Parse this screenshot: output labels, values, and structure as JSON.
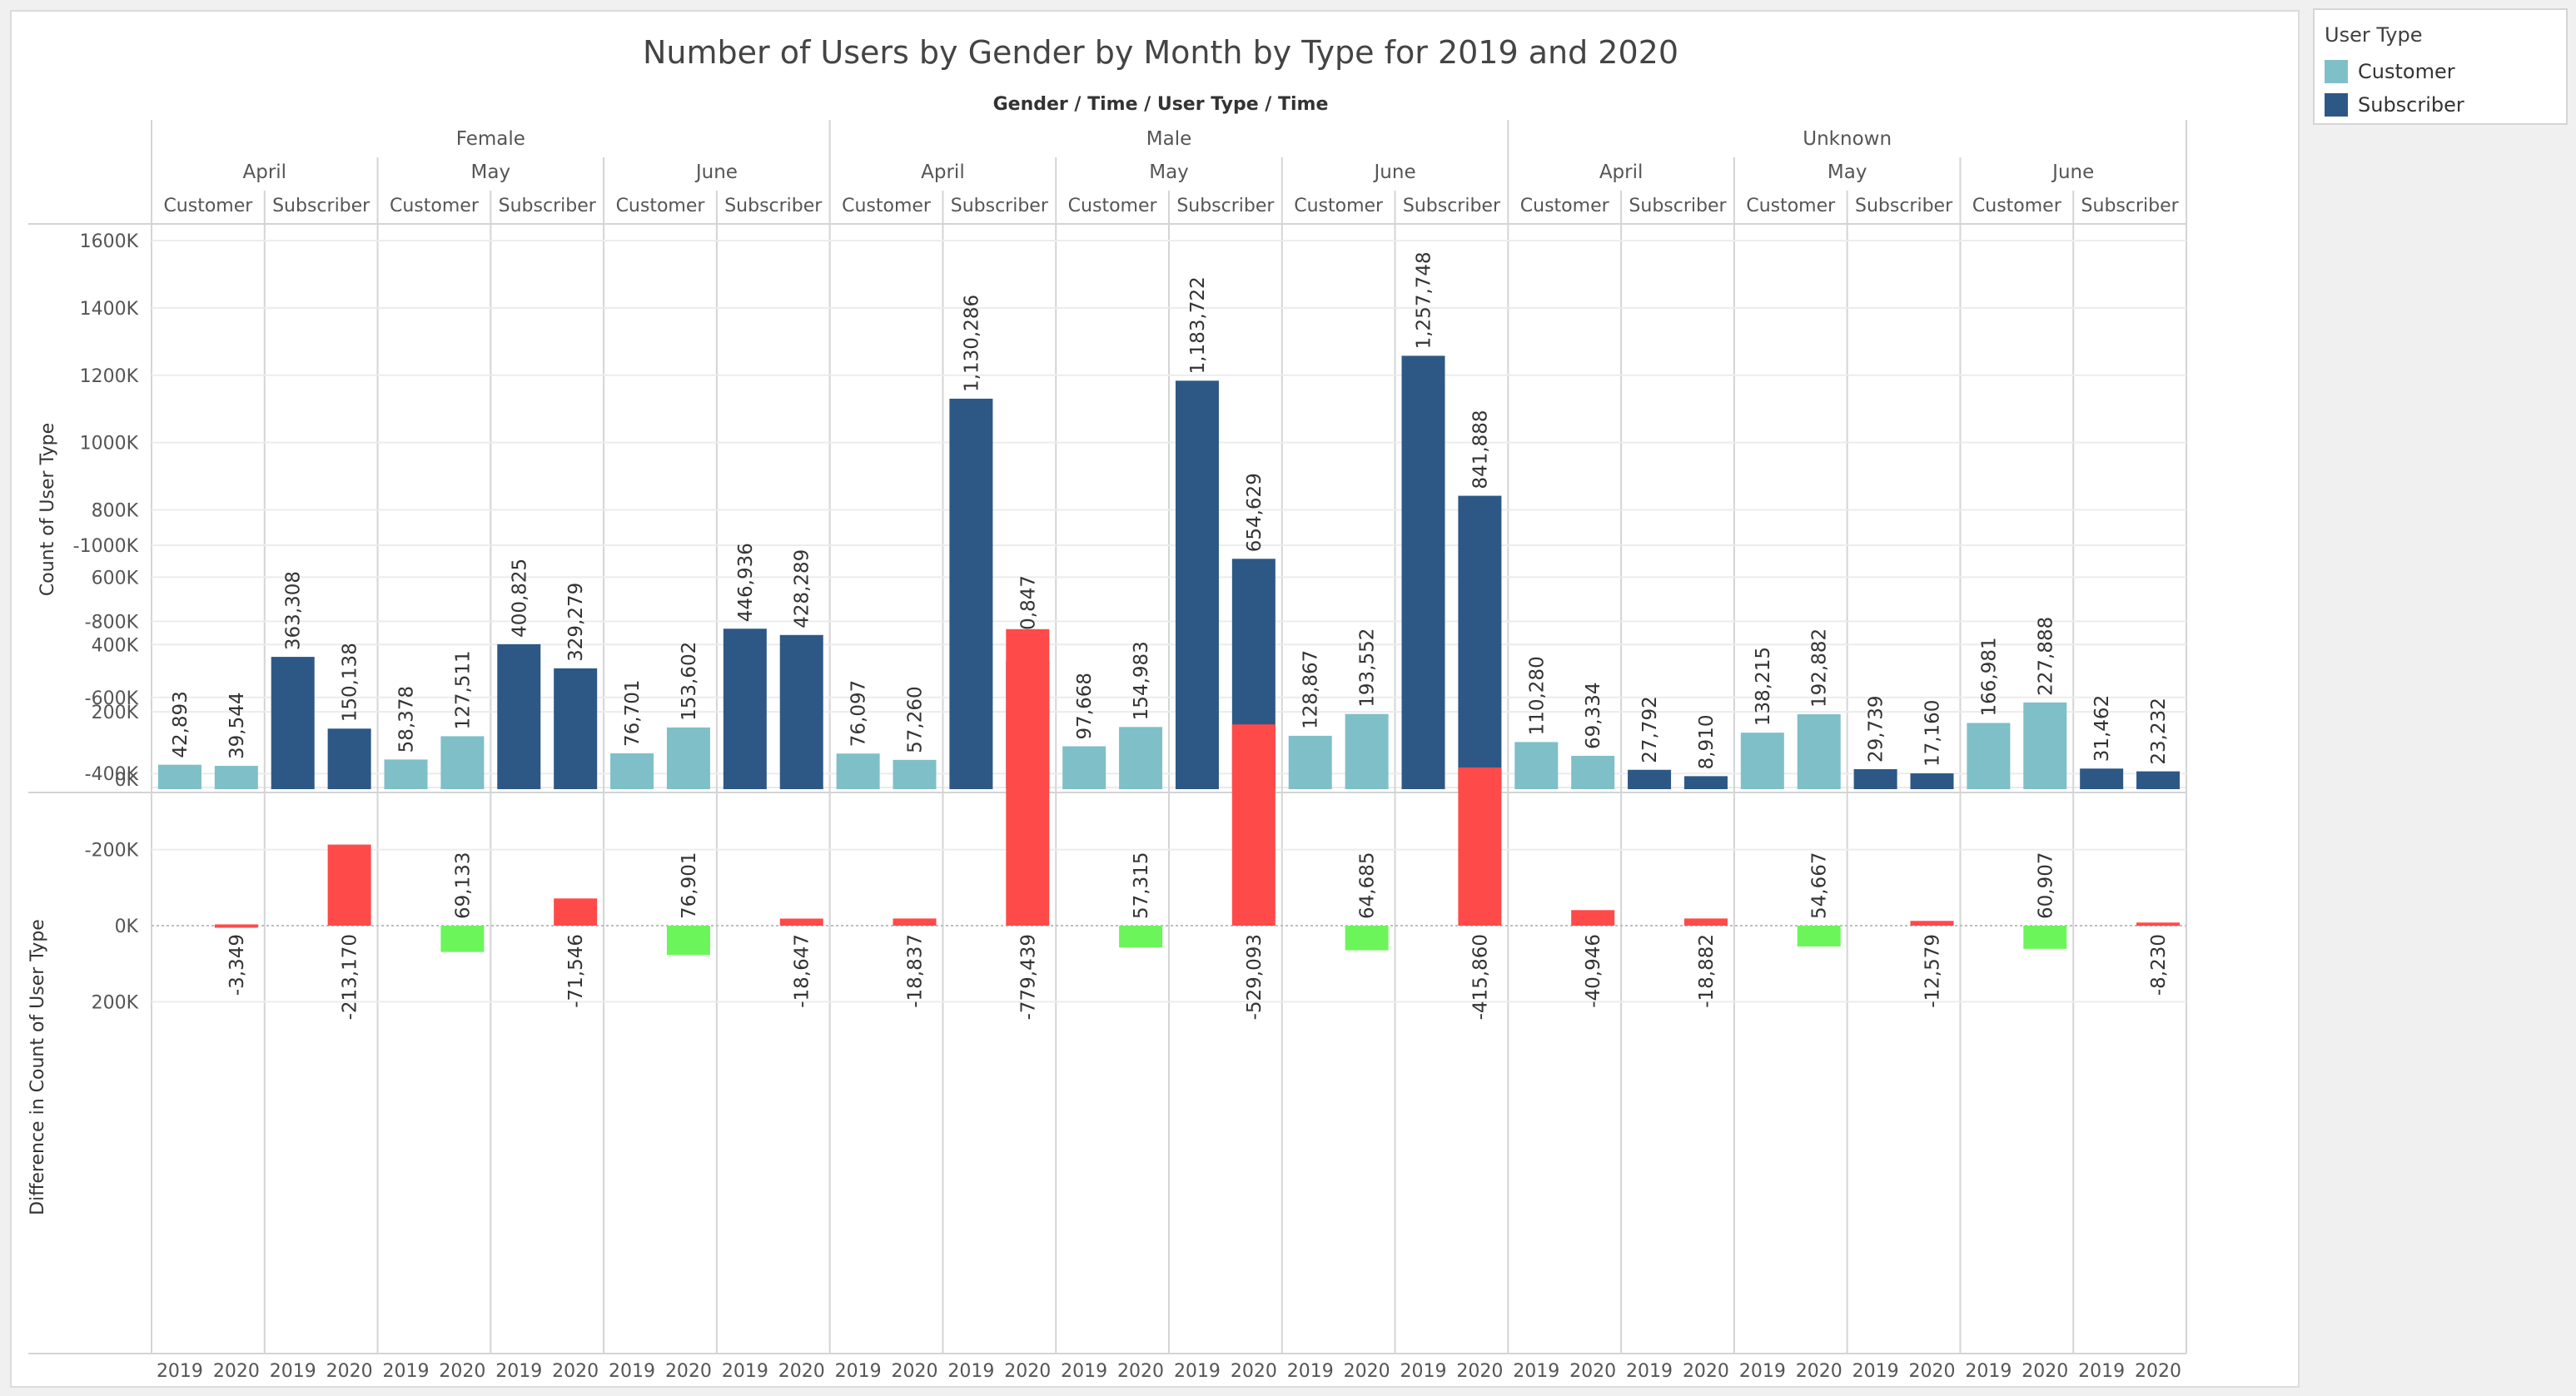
{
  "title": "Number of Users by Gender by Month by Type for 2019 and 2020",
  "header_caption": "Gender / Time / User Type / Time",
  "legend": {
    "title": "User Type",
    "items": [
      {
        "label": "Customer",
        "color": "#7fbfc8"
      },
      {
        "label": "Subscriber",
        "color": "#2d5886"
      }
    ]
  },
  "colors": {
    "customer": "#7fbfc8",
    "subscriber": "#2d5886",
    "increase": "#6cf55a",
    "decrease": "#ff4a4a"
  },
  "chart_data": {
    "type": "bar",
    "genders": [
      "Female",
      "Male",
      "Unknown"
    ],
    "months": [
      "April",
      "May",
      "June"
    ],
    "user_types": [
      "Customer",
      "Subscriber"
    ],
    "years": [
      "2019",
      "2020"
    ],
    "panels": [
      {
        "ylabel": "Count of User Type",
        "ylim": [
          0,
          1600000
        ],
        "ticks": [
          0,
          200000,
          400000,
          600000,
          800000,
          1000000,
          1200000,
          1400000,
          1600000
        ],
        "tick_labels": [
          "0K",
          "200K",
          "400K",
          "600K",
          "800K",
          "1000K",
          "1200K",
          "1400K",
          "1600K"
        ],
        "values": [
          42893,
          39544,
          363308,
          150138,
          58378,
          127511,
          400825,
          329279,
          76701,
          153602,
          446936,
          428289,
          76097,
          57260,
          1130286,
          350847,
          97668,
          154983,
          1183722,
          654629,
          128867,
          193552,
          1257748,
          841888,
          110280,
          69334,
          27792,
          8910,
          138215,
          192882,
          29739,
          17160,
          166981,
          227888,
          31462,
          23232
        ],
        "labels": [
          "42,893",
          "39,544",
          "363,308",
          "150,138",
          "58,378",
          "127,511",
          "400,825",
          "329,279",
          "76,701",
          "153,602",
          "446,936",
          "428,289",
          "76,097",
          "57,260",
          "1,130,286",
          "350,847",
          "97,668",
          "154,983",
          "1,183,722",
          "654,629",
          "128,867",
          "193,552",
          "1,257,748",
          "841,888",
          "110,280",
          "69,334",
          "27,792",
          "8,910",
          "138,215",
          "192,882",
          "29,739",
          "17,160",
          "166,981",
          "227,888",
          "31,462",
          "23,232"
        ]
      },
      {
        "ylabel": "Difference in Count of User Type",
        "ylim": [
          -1000000,
          200000
        ],
        "ticks": [
          200000,
          0,
          -200000,
          -400000,
          -600000,
          -800000,
          -1000000
        ],
        "tick_labels": [
          "200K",
          "0K",
          "-200K",
          "-400K",
          "-600K",
          "-800K",
          "-1000K"
        ],
        "values": [
          null,
          -3349,
          null,
          -213170,
          null,
          69133,
          null,
          -71546,
          null,
          76901,
          null,
          -18647,
          null,
          -18837,
          null,
          -779439,
          null,
          57315,
          null,
          -529093,
          null,
          64685,
          null,
          -415860,
          null,
          -40946,
          null,
          -18882,
          null,
          54667,
          null,
          -12579,
          null,
          60907,
          null,
          -8230
        ],
        "labels": [
          "",
          "-3,349",
          "",
          "-213,170",
          "",
          "69,133",
          "",
          "-71,546",
          "",
          "76,901",
          "",
          "-18,647",
          "",
          "-18,837",
          "",
          "-779,439",
          "",
          "57,315",
          "",
          "-529,093",
          "",
          "64,685",
          "",
          "-415,860",
          "",
          "-40,946",
          "",
          "-18,882",
          "",
          "54,667",
          "",
          "-12,579",
          "",
          "60,907",
          "",
          "-8,230"
        ]
      }
    ]
  }
}
